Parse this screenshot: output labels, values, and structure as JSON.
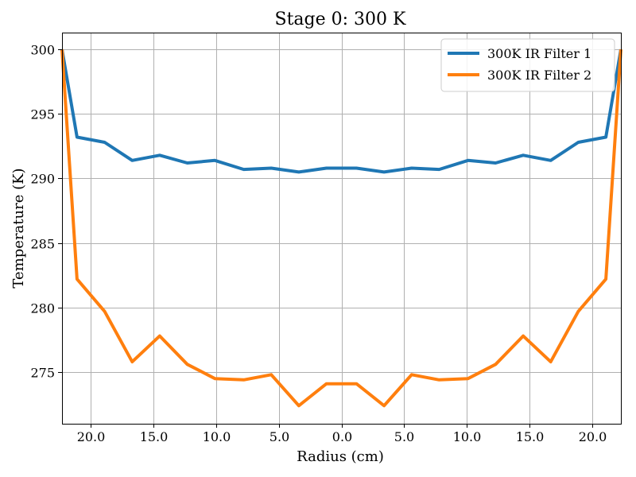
{
  "chart_data": {
    "type": "line",
    "title": "Stage 0: 300 K",
    "xlabel": "Radius (cm)",
    "ylabel": "Temperature (K)",
    "xlim": [
      -22.3,
      22.3
    ],
    "ylim": [
      271.0,
      301.3
    ],
    "x_ticks": [
      {
        "value": -20,
        "label": "20.0"
      },
      {
        "value": -15,
        "label": "15.0"
      },
      {
        "value": -10,
        "label": "10.0"
      },
      {
        "value": -5,
        "label": "5.0"
      },
      {
        "value": 0,
        "label": "0.0"
      },
      {
        "value": 5,
        "label": "5.0"
      },
      {
        "value": 10,
        "label": "10.0"
      },
      {
        "value": 15,
        "label": "15.0"
      },
      {
        "value": 20,
        "label": "20.0"
      }
    ],
    "y_ticks": [
      {
        "value": 275,
        "label": "275"
      },
      {
        "value": 280,
        "label": "280"
      },
      {
        "value": 285,
        "label": "285"
      },
      {
        "value": 290,
        "label": "290"
      },
      {
        "value": 295,
        "label": "295"
      },
      {
        "value": 300,
        "label": "300"
      }
    ],
    "grid": true,
    "legend_position": "top-right",
    "x": [
      -22.3,
      -21.1,
      -18.9,
      -16.7,
      -14.5,
      -12.3,
      -10.1,
      -7.8,
      -5.6,
      -3.4,
      -1.2,
      1.2,
      3.4,
      5.6,
      7.8,
      10.1,
      12.3,
      14.5,
      16.7,
      18.9,
      21.1,
      22.3
    ],
    "series": [
      {
        "name": "300K IR Filter 1",
        "color": "#1f77b4",
        "values": [
          300.0,
          293.2,
          292.8,
          291.4,
          291.8,
          291.2,
          291.4,
          290.7,
          290.8,
          290.5,
          290.8,
          290.8,
          290.5,
          290.8,
          290.7,
          291.4,
          291.2,
          291.8,
          291.4,
          292.8,
          293.2,
          300.0
        ]
      },
      {
        "name": "300K IR Filter 2",
        "color": "#ff7f0e",
        "values": [
          300.0,
          282.2,
          279.7,
          275.8,
          277.8,
          275.6,
          274.5,
          274.4,
          274.8,
          272.4,
          274.1,
          274.1,
          272.4,
          274.8,
          274.4,
          274.5,
          275.6,
          277.8,
          275.8,
          279.7,
          282.2,
          300.0
        ]
      }
    ]
  }
}
